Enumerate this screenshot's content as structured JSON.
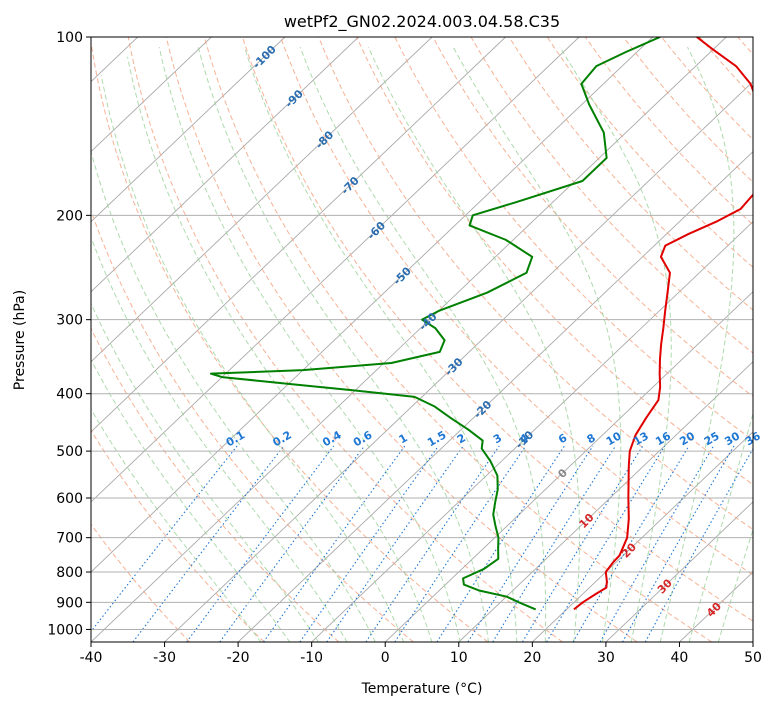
{
  "chart_data": {
    "type": "line",
    "subtype": "skew-t log-p diagram",
    "title": "wetPf2_GN02.2024.003.04.58.C35",
    "xlabel": "Temperature (°C)",
    "ylabel": "Pressure (hPa)",
    "xlim": [
      -40,
      50
    ],
    "ylim": [
      1050,
      100
    ],
    "y_scale": "log",
    "grid": true,
    "x_ticks": [
      "-40",
      "-30",
      "-20",
      "-10",
      "0",
      "10",
      "20",
      "30",
      "40",
      "50"
    ],
    "y_ticks": [
      "100",
      "200",
      "300",
      "400",
      "500",
      "600",
      "700",
      "800",
      "900",
      "1000"
    ],
    "series": [
      {
        "role": "temperature",
        "color": "#e00000",
        "points": [
          [
            925,
            21.0
          ],
          [
            900,
            21.2
          ],
          [
            870,
            21.8
          ],
          [
            850,
            22.3
          ],
          [
            830,
            21.5
          ],
          [
            800,
            20.0
          ],
          [
            770,
            19.6
          ],
          [
            750,
            19.5
          ],
          [
            700,
            18.0
          ],
          [
            650,
            15.5
          ],
          [
            600,
            12.5
          ],
          [
            560,
            10.0
          ],
          [
            530,
            8.0
          ],
          [
            500,
            6.0
          ],
          [
            470,
            4.5
          ],
          [
            440,
            3.5
          ],
          [
            410,
            2.6
          ],
          [
            390,
            1.0
          ],
          [
            370,
            -1.0
          ],
          [
            350,
            -3.0
          ],
          [
            330,
            -5.0
          ],
          [
            310,
            -7.0
          ],
          [
            290,
            -9.2
          ],
          [
            270,
            -11.5
          ],
          [
            250,
            -14.0
          ],
          [
            235,
            -17.5
          ],
          [
            225,
            -18.5
          ],
          [
            215,
            -17.0
          ],
          [
            205,
            -15.0
          ],
          [
            195,
            -13.5
          ],
          [
            180,
            -14.0
          ],
          [
            165,
            -16.0
          ],
          [
            150,
            -19.0
          ],
          [
            140,
            -22.0
          ],
          [
            130,
            -26.0
          ],
          [
            120,
            -30.0
          ],
          [
            112,
            -34.5
          ],
          [
            105,
            -40.0
          ],
          [
            100,
            -44.0
          ]
        ]
      },
      {
        "role": "dewpoint",
        "color": "#008000",
        "points": [
          [
            925,
            15.8
          ],
          [
            900,
            12.5
          ],
          [
            880,
            10.0
          ],
          [
            860,
            5.5
          ],
          [
            840,
            2.5
          ],
          [
            820,
            1.5
          ],
          [
            810,
            2.0
          ],
          [
            790,
            3.0
          ],
          [
            760,
            3.5
          ],
          [
            730,
            2.0
          ],
          [
            700,
            0.5
          ],
          [
            670,
            -1.5
          ],
          [
            640,
            -3.5
          ],
          [
            610,
            -5.0
          ],
          [
            580,
            -6.5
          ],
          [
            550,
            -8.5
          ],
          [
            520,
            -11.5
          ],
          [
            495,
            -14.5
          ],
          [
            480,
            -15.5
          ],
          [
            460,
            -19.0
          ],
          [
            440,
            -23.0
          ],
          [
            420,
            -27.0
          ],
          [
            405,
            -31.0
          ],
          [
            395,
            -40.0
          ],
          [
            385,
            -50.0
          ],
          [
            375,
            -60.0
          ],
          [
            370,
            -62.0
          ],
          [
            365,
            -50.0
          ],
          [
            355,
            -39.0
          ],
          [
            340,
            -34.0
          ],
          [
            325,
            -35.0
          ],
          [
            310,
            -38.0
          ],
          [
            300,
            -41.0
          ],
          [
            290,
            -40.0
          ],
          [
            270,
            -36.0
          ],
          [
            250,
            -33.5
          ],
          [
            235,
            -35.0
          ],
          [
            220,
            -41.0
          ],
          [
            208,
            -48.0
          ],
          [
            200,
            -49.0
          ],
          [
            190,
            -45.0
          ],
          [
            175,
            -39.0
          ],
          [
            160,
            -39.0
          ],
          [
            145,
            -43.0
          ],
          [
            130,
            -49.0
          ],
          [
            120,
            -53.0
          ],
          [
            112,
            -53.5
          ],
          [
            106,
            -51.5
          ],
          [
            100,
            -49.0
          ]
        ]
      }
    ],
    "reference_lines": {
      "isotherms_color": "#aaaaaa",
      "dry_adiabats_color": "#f4a582",
      "moist_adiabats_color": "#9ad19a",
      "mixing_ratio_color": "#1f77d4",
      "mixing_ratio_labels": [
        "0.1",
        "0.2",
        "0.4",
        "0.6",
        "1",
        "1.5",
        "2",
        "3",
        "4",
        "6",
        "8",
        "10",
        "13",
        "16",
        "20",
        "25",
        "30",
        "36"
      ],
      "mixing_ratio_values": [
        0.1,
        0.2,
        0.4,
        0.6,
        1,
        1.5,
        2,
        3,
        4,
        6,
        8,
        10,
        13,
        16,
        20,
        25,
        30,
        36
      ],
      "isotherm_labels_negative": [
        "-100",
        "-90",
        "-80",
        "-70",
        "-60",
        "-50",
        "-40",
        "-30",
        "-20",
        "-10"
      ],
      "isotherm_labels_negative_color": "#2a6db0",
      "isotherm_labels_positive": [
        "0",
        "10",
        "20",
        "30",
        "40"
      ],
      "isotherm_label_zero_color": "#888888",
      "isotherm_labels_positive_color": "#d62728"
    }
  }
}
